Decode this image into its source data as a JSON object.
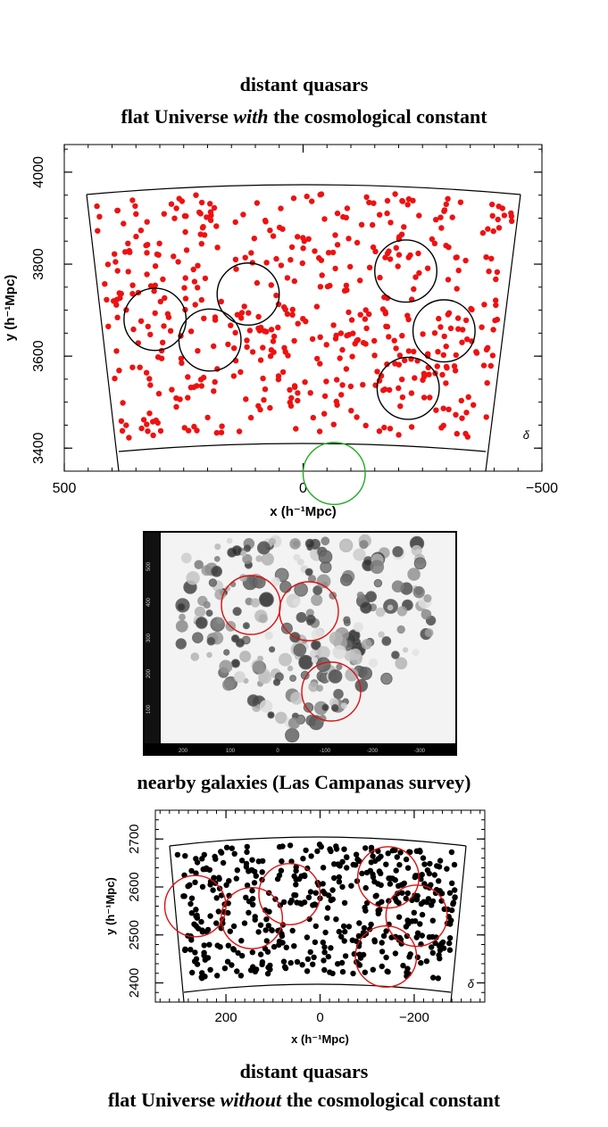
{
  "top": {
    "line1": "distant quasars",
    "line2_pre": "flat Universe",
    "line2_em": "with",
    "line2_post": "the cosmological constant"
  },
  "middle": {
    "caption": "nearby galaxies (Las Campanas survey)",
    "x_ticks": [
      "200",
      "100",
      "0",
      "-100",
      "-200",
      "-300"
    ],
    "y_ticks": [
      "100",
      "200",
      "300",
      "400",
      "500"
    ]
  },
  "bottom": {
    "line1": "distant quasars",
    "line2_pre": "flat Universe",
    "line2_em": "without",
    "line2_post": "the cosmological constant"
  },
  "colors": {
    "quasar_red": "#ee1111",
    "quasar_black": "#000000",
    "circle_red": "#dd1111",
    "circle_green": "#22aa22"
  },
  "chart_data": [
    {
      "type": "scatter",
      "title": "",
      "xlabel": "x (h⁻¹Mpc)",
      "ylabel": "y (h⁻¹Mpc)",
      "xlim": [
        500,
        -500
      ],
      "ylim": [
        3350,
        4060
      ],
      "x_ticks": [
        500,
        0,
        -500
      ],
      "x_tick_labels": [
        "500",
        "0",
        "−500"
      ],
      "y_ticks": [
        3400,
        3600,
        3800,
        4000
      ],
      "corner_label": "δ",
      "series": [
        {
          "color": "#ee1111",
          "n_points": 520
        }
      ],
      "circles": [
        {
          "x": 310,
          "y": 3680,
          "r": 65,
          "color": "#000000"
        },
        {
          "x": 195,
          "y": 3635,
          "r": 65,
          "color": "#000000"
        },
        {
          "x": 115,
          "y": 3735,
          "r": 65,
          "color": "#000000"
        },
        {
          "x": -215,
          "y": 3785,
          "r": 65,
          "color": "#000000"
        },
        {
          "x": -295,
          "y": 3655,
          "r": 65,
          "color": "#000000"
        },
        {
          "x": -220,
          "y": 3530,
          "r": 65,
          "color": "#000000"
        },
        {
          "x": -65,
          "y": 3345,
          "r": 65,
          "color": "#22aa22"
        }
      ]
    },
    {
      "type": "scatter",
      "title": "",
      "xlabel": "x (h⁻¹Mpc)",
      "ylabel": "y (h⁻¹Mpc)",
      "xlim": [
        350,
        -350
      ],
      "ylim": [
        2360,
        2760
      ],
      "x_ticks": [
        200,
        0,
        -200
      ],
      "x_tick_labels": [
        "200",
        "0",
        "−200"
      ],
      "y_ticks": [
        2400,
        2500,
        2600,
        2700
      ],
      "corner_label": "δ",
      "series": [
        {
          "color": "#000000",
          "n_points": 480
        }
      ],
      "circles": [
        {
          "x": 265,
          "y": 2560,
          "r": 65,
          "color": "#dd1111"
        },
        {
          "x": 145,
          "y": 2535,
          "r": 65,
          "color": "#dd1111"
        },
        {
          "x": 65,
          "y": 2585,
          "r": 65,
          "color": "#dd1111"
        },
        {
          "x": -145,
          "y": 2620,
          "r": 65,
          "color": "#dd1111"
        },
        {
          "x": -205,
          "y": 2540,
          "r": 65,
          "color": "#dd1111"
        },
        {
          "x": -140,
          "y": 2455,
          "r": 65,
          "color": "#dd1111"
        }
      ]
    }
  ]
}
